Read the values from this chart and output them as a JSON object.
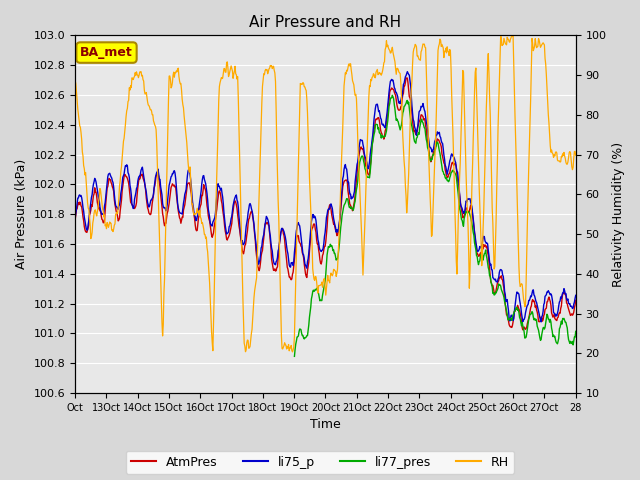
{
  "title": "Air Pressure and RH",
  "xlabel": "Time",
  "ylabel_left": "Air Pressure (kPa)",
  "ylabel_right": "Relativity Humidity (%)",
  "annotation": "BA_met",
  "ylim_left": [
    100.6,
    103.0
  ],
  "ylim_right": [
    10,
    100
  ],
  "yticks_left": [
    100.6,
    100.8,
    101.0,
    101.2,
    101.4,
    101.6,
    101.8,
    102.0,
    102.2,
    102.4,
    102.6,
    102.8,
    103.0
  ],
  "yticks_right": [
    10,
    20,
    30,
    40,
    50,
    60,
    70,
    80,
    90,
    100
  ],
  "xtick_labels": [
    "Oct",
    "13Oct",
    "14Oct",
    "15Oct",
    "16Oct",
    "17Oct",
    "18Oct",
    "19Oct",
    "20Oct",
    "21Oct",
    "22Oct",
    "23Oct",
    "24Oct",
    "25Oct",
    "26Oct",
    "27Oct",
    "28"
  ],
  "colors": {
    "AtmPres": "#cc0000",
    "li75_p": "#0000cc",
    "li77_pres": "#00aa00",
    "RH": "#ffaa00"
  },
  "background_color": "#d8d8d8",
  "plot_bg_color": "#e8e8e8",
  "grid_color": "#ffffff"
}
